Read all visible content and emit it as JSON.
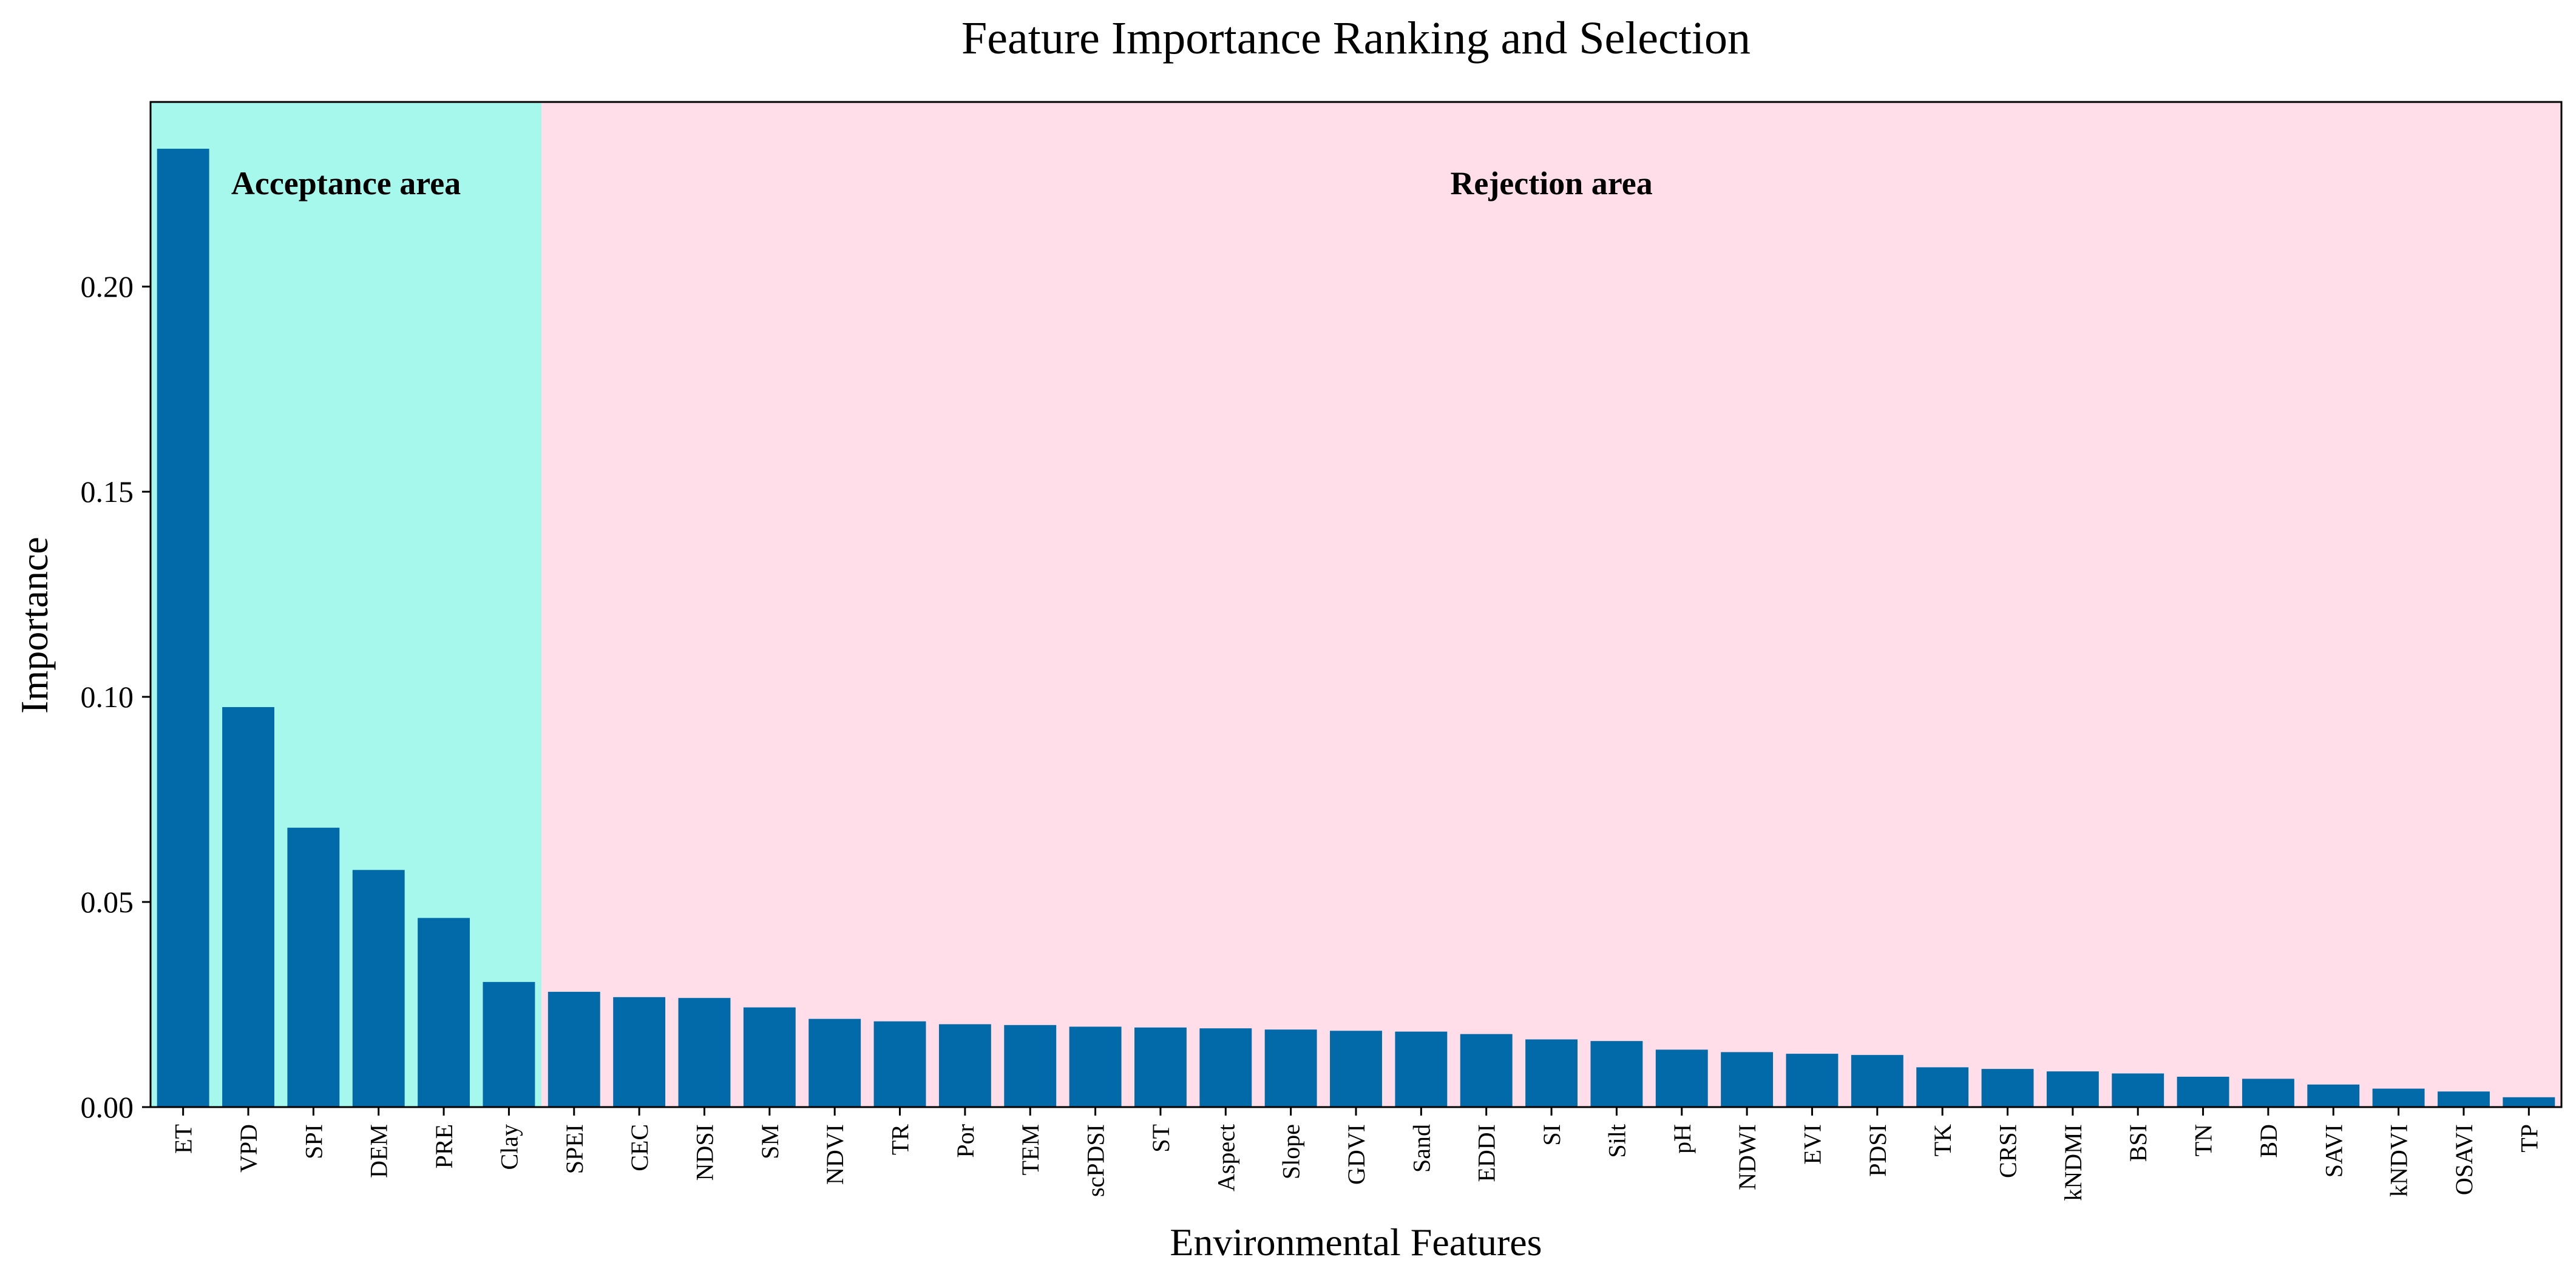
{
  "chart_data": {
    "type": "bar",
    "title": "Feature Importance Ranking and Selection",
    "xlabel": "Environmental Features",
    "ylabel": "Importance",
    "ylim": [
      0,
      0.245
    ],
    "yticks": [
      0.0,
      0.05,
      0.1,
      0.15,
      0.2
    ],
    "ytick_labels": [
      "0.00",
      "0.05",
      "0.10",
      "0.15",
      "0.20"
    ],
    "grid": false,
    "legend": "none",
    "categories": [
      "ET",
      "VPD",
      "SPI",
      "DEM",
      "PRE",
      "Clay",
      "SPEI",
      "CEC",
      "NDSI",
      "SM",
      "NDVI",
      "TR",
      "Por",
      "TEM",
      "scPDSI",
      "ST",
      "Aspect",
      "Slope",
      "GDVI",
      "Sand",
      "EDDI",
      "SI",
      "Silt",
      "pH",
      "NDWI",
      "EVI",
      "PDSI",
      "TK",
      "CRSI",
      "kNDMI",
      "BSI",
      "TN",
      "BD",
      "SAVI",
      "kNDVI",
      "OSAVI",
      "TP"
    ],
    "values": [
      0.2336,
      0.0975,
      0.0681,
      0.0578,
      0.0461,
      0.0305,
      0.0281,
      0.0268,
      0.0266,
      0.0243,
      0.0215,
      0.0209,
      0.0202,
      0.02,
      0.0196,
      0.0194,
      0.0192,
      0.0189,
      0.0186,
      0.0184,
      0.0178,
      0.0165,
      0.0161,
      0.014,
      0.0134,
      0.013,
      0.0127,
      0.0097,
      0.0093,
      0.0087,
      0.0082,
      0.0074,
      0.0069,
      0.0055,
      0.0045,
      0.0038,
      0.0024
    ],
    "regions": [
      {
        "name": "Acceptance area",
        "from": "ET",
        "to": "Clay",
        "color": "#a6f7ec"
      },
      {
        "name": "Rejection area",
        "from": "SPEI",
        "to": "TP",
        "color": "#ffdde9"
      }
    ],
    "bar_color": "#036aaa"
  }
}
